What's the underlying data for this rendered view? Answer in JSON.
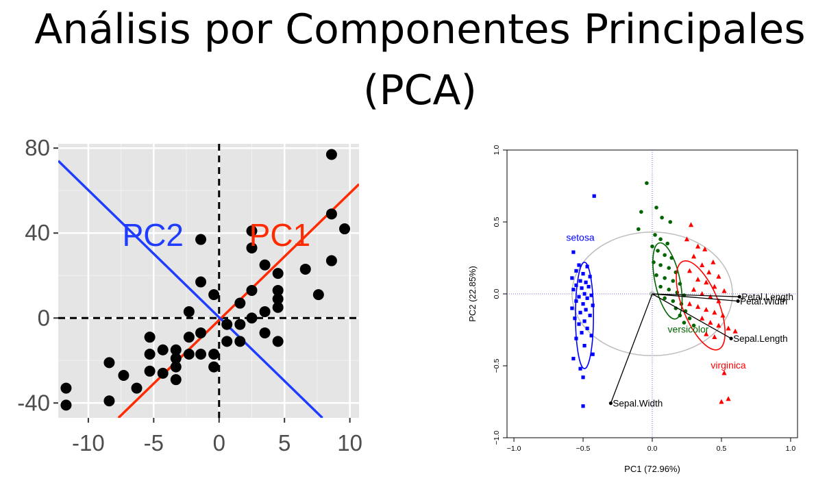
{
  "slide": {
    "title_line1": "Análisis por Componentes Principales",
    "title_line2": "(PCA)"
  },
  "chart_data": [
    {
      "type": "scatter",
      "title": "",
      "xlabel": "",
      "ylabel": "",
      "xlim": [
        -12.3,
        10.7
      ],
      "ylim": [
        -47,
        82
      ],
      "xticks": [
        -10,
        -5,
        0,
        5,
        10
      ],
      "yticks": [
        80,
        40,
        0,
        -40
      ],
      "xtick_labels": [
        "-10",
        "-5",
        "0",
        "5",
        "10"
      ],
      "ytick_labels": [
        "80",
        "40",
        "0",
        "-40"
      ],
      "grid": true,
      "background": "#e5e5e5",
      "point_color": "#000000",
      "points": [
        [
          -11.7,
          -33
        ],
        [
          -11.7,
          -41
        ],
        [
          -8.4,
          -21
        ],
        [
          -8.4,
          -39
        ],
        [
          -7.3,
          -27
        ],
        [
          -6.3,
          -33
        ],
        [
          -5.3,
          -9
        ],
        [
          -5.3,
          -17
        ],
        [
          -5.3,
          -25
        ],
        [
          -4.3,
          -15
        ],
        [
          -4.3,
          -26
        ],
        [
          -3.3,
          -15
        ],
        [
          -3.3,
          -19
        ],
        [
          -3.3,
          -23
        ],
        [
          -3.3,
          -29
        ],
        [
          -2.3,
          -9
        ],
        [
          -2.3,
          -17
        ],
        [
          -2.3,
          3
        ],
        [
          -1.4,
          37
        ],
        [
          -1.4,
          17
        ],
        [
          -1.4,
          -7
        ],
        [
          -1.4,
          -17
        ],
        [
          -0.4,
          11
        ],
        [
          -0.4,
          -17
        ],
        [
          -0.4,
          -23
        ],
        [
          0.6,
          -3
        ],
        [
          0.6,
          -11
        ],
        [
          1.6,
          7
        ],
        [
          1.6,
          -3
        ],
        [
          1.6,
          -11
        ],
        [
          2.5,
          41
        ],
        [
          2.5,
          33
        ],
        [
          2.5,
          13
        ],
        [
          2.5,
          0
        ],
        [
          3.5,
          25
        ],
        [
          3.5,
          3
        ],
        [
          3.5,
          -7
        ],
        [
          4.5,
          21
        ],
        [
          4.5,
          13
        ],
        [
          4.5,
          9
        ],
        [
          4.5,
          5
        ],
        [
          4.5,
          -11
        ],
        [
          6.6,
          23
        ],
        [
          7.6,
          11
        ],
        [
          8.6,
          77
        ],
        [
          8.6,
          49
        ],
        [
          8.6,
          27
        ],
        [
          9.6,
          42
        ]
      ],
      "lines": [
        {
          "name": "PC1",
          "color": "#ff2a00",
          "from": [
            -7.7,
            -47
          ],
          "to": [
            10.7,
            63
          ]
        },
        {
          "name": "PC2",
          "color": "#1f3cff",
          "from": [
            -12.3,
            74
          ],
          "to": [
            7.9,
            -47
          ]
        }
      ],
      "annotations": [
        {
          "text": "PC2",
          "color": "#1f3cff",
          "x": -7.4,
          "y": 34
        },
        {
          "text": "PC1",
          "color": "#ff2a00",
          "x": 2.3,
          "y": 34
        }
      ],
      "axis_lines": {
        "x": 0,
        "y": 0,
        "style": "dashed"
      }
    },
    {
      "type": "scatter",
      "title": "",
      "xlabel": "PC1 (72.96%)",
      "ylabel": "PC2 (22.85%)",
      "xlim": [
        -1.05,
        1.05
      ],
      "ylim": [
        -1.0,
        1.0
      ],
      "xticks": [
        -1.0,
        -0.5,
        0.0,
        0.5,
        1.0
      ],
      "yticks": [
        -1.0,
        -0.5,
        0.0,
        0.5,
        1.0
      ],
      "xtick_labels": [
        "−1.0",
        "−0.5",
        "0.0",
        "0.5",
        "1.0"
      ],
      "ytick_labels": [
        "−1.0",
        "−0.5",
        "0.0",
        "0.5",
        "1.0"
      ],
      "grid": false,
      "series": [
        {
          "name": "setosa",
          "color": "#0000ff",
          "marker": "square",
          "label_pos": [
            -0.52,
            0.37
          ],
          "ellipse": {
            "cx": -0.49,
            "cy": -0.15,
            "rx": 0.065,
            "ry": 0.37,
            "angle": 0
          },
          "points": [
            [
              -0.42,
              0.68
            ],
            [
              -0.57,
              0.29
            ],
            [
              -0.53,
              0.2
            ],
            [
              -0.47,
              0.19
            ],
            [
              -0.55,
              0.16
            ],
            [
              -0.5,
              0.14
            ],
            [
              -0.45,
              0.12
            ],
            [
              -0.58,
              0.11
            ],
            [
              -0.52,
              0.09
            ],
            [
              -0.48,
              0.08
            ],
            [
              -0.55,
              0.06
            ],
            [
              -0.46,
              0.05
            ],
            [
              -0.51,
              0.04
            ],
            [
              -0.57,
              0.03
            ],
            [
              -0.49,
              0.0
            ],
            [
              -0.44,
              -0.01
            ],
            [
              -0.53,
              -0.02
            ],
            [
              -0.47,
              -0.03
            ],
            [
              -0.55,
              -0.05
            ],
            [
              -0.5,
              -0.07
            ],
            [
              -0.43,
              -0.08
            ],
            [
              -0.58,
              -0.1
            ],
            [
              -0.48,
              -0.11
            ],
            [
              -0.52,
              -0.13
            ],
            [
              -0.45,
              -0.15
            ],
            [
              -0.56,
              -0.17
            ],
            [
              -0.49,
              -0.19
            ],
            [
              -0.53,
              -0.21
            ],
            [
              -0.47,
              -0.24
            ],
            [
              -0.51,
              -0.27
            ],
            [
              -0.44,
              -0.29
            ],
            [
              -0.55,
              -0.31
            ],
            [
              -0.49,
              -0.36
            ],
            [
              -0.43,
              -0.42
            ],
            [
              -0.57,
              -0.45
            ],
            [
              -0.52,
              -0.52
            ],
            [
              -0.5,
              -0.58
            ],
            [
              -0.5,
              -0.78
            ]
          ]
        },
        {
          "name": "versicolor",
          "color": "#006400",
          "marker": "circle",
          "label_pos": [
            0.26,
            -0.27
          ],
          "ellipse": {
            "cx": 0.11,
            "cy": 0.09,
            "rx": 0.09,
            "ry": 0.27,
            "angle": -12
          },
          "points": [
            [
              -0.04,
              0.77
            ],
            [
              -0.08,
              0.57
            ],
            [
              0.03,
              0.6
            ],
            [
              0.07,
              0.53
            ],
            [
              0.13,
              0.5
            ],
            [
              -0.1,
              0.45
            ],
            [
              0.02,
              0.41
            ],
            [
              0.06,
              0.38
            ],
            [
              0.11,
              0.35
            ],
            [
              0.0,
              0.33
            ],
            [
              0.04,
              0.3
            ],
            [
              0.09,
              0.27
            ],
            [
              0.14,
              0.25
            ],
            [
              0.01,
              0.22
            ],
            [
              0.06,
              0.2
            ],
            [
              0.12,
              0.18
            ],
            [
              0.17,
              0.15
            ],
            [
              0.03,
              0.13
            ],
            [
              0.09,
              0.11
            ],
            [
              0.15,
              0.09
            ],
            [
              0.2,
              0.07
            ],
            [
              0.06,
              0.05
            ],
            [
              0.12,
              0.03
            ],
            [
              0.18,
              0.01
            ],
            [
              0.23,
              -0.01
            ],
            [
              0.09,
              -0.03
            ],
            [
              0.15,
              -0.05
            ],
            [
              0.21,
              -0.07
            ],
            [
              0.17,
              -0.1
            ],
            [
              0.24,
              -0.12
            ],
            [
              0.2,
              -0.15
            ],
            [
              0.27,
              -0.17
            ],
            [
              0.23,
              -0.2
            ],
            [
              0.3,
              -0.22
            ]
          ]
        },
        {
          "name": "virginica",
          "color": "#ff0000",
          "marker": "triangle",
          "label_pos": [
            0.55,
            -0.52
          ],
          "ellipse": {
            "cx": 0.35,
            "cy": -0.08,
            "rx": 0.13,
            "ry": 0.33,
            "angle": -22
          },
          "points": [
            [
              0.28,
              0.48
            ],
            [
              0.25,
              0.38
            ],
            [
              0.33,
              0.33
            ],
            [
              0.38,
              0.31
            ],
            [
              0.3,
              0.26
            ],
            [
              0.44,
              0.22
            ],
            [
              0.36,
              0.2
            ],
            [
              0.27,
              0.16
            ],
            [
              0.41,
              0.15
            ],
            [
              0.48,
              0.12
            ],
            [
              0.33,
              0.1
            ],
            [
              0.39,
              0.08
            ],
            [
              0.45,
              0.05
            ],
            [
              0.3,
              0.03
            ],
            [
              0.52,
              0.02
            ],
            [
              0.36,
              0.0
            ],
            [
              0.42,
              -0.02
            ],
            [
              0.48,
              -0.05
            ],
            [
              0.27,
              -0.07
            ],
            [
              0.33,
              -0.09
            ],
            [
              0.39,
              -0.11
            ],
            [
              0.45,
              -0.13
            ],
            [
              0.51,
              -0.15
            ],
            [
              0.36,
              -0.17
            ],
            [
              0.42,
              -0.2
            ],
            [
              0.48,
              -0.22
            ],
            [
              0.55,
              -0.24
            ],
            [
              0.6,
              -0.26
            ],
            [
              0.39,
              -0.28
            ],
            [
              0.45,
              -0.3
            ],
            [
              0.52,
              -0.55
            ],
            [
              0.5,
              -0.75
            ],
            [
              0.55,
              -0.73
            ]
          ]
        }
      ],
      "vectors": [
        {
          "name": "Petal.Length",
          "to": [
            0.63,
            -0.02
          ]
        },
        {
          "name": "Petal.Width",
          "to": [
            0.62,
            -0.05
          ]
        },
        {
          "name": "Sepal.Length",
          "to": [
            0.57,
            -0.31
          ]
        },
        {
          "name": "Sepal.Width",
          "to": [
            -0.3,
            -0.76
          ]
        }
      ],
      "correlation_circle": true,
      "reference_lines": {
        "x": 0.0,
        "y": 0.0,
        "style": "dotted"
      }
    }
  ]
}
